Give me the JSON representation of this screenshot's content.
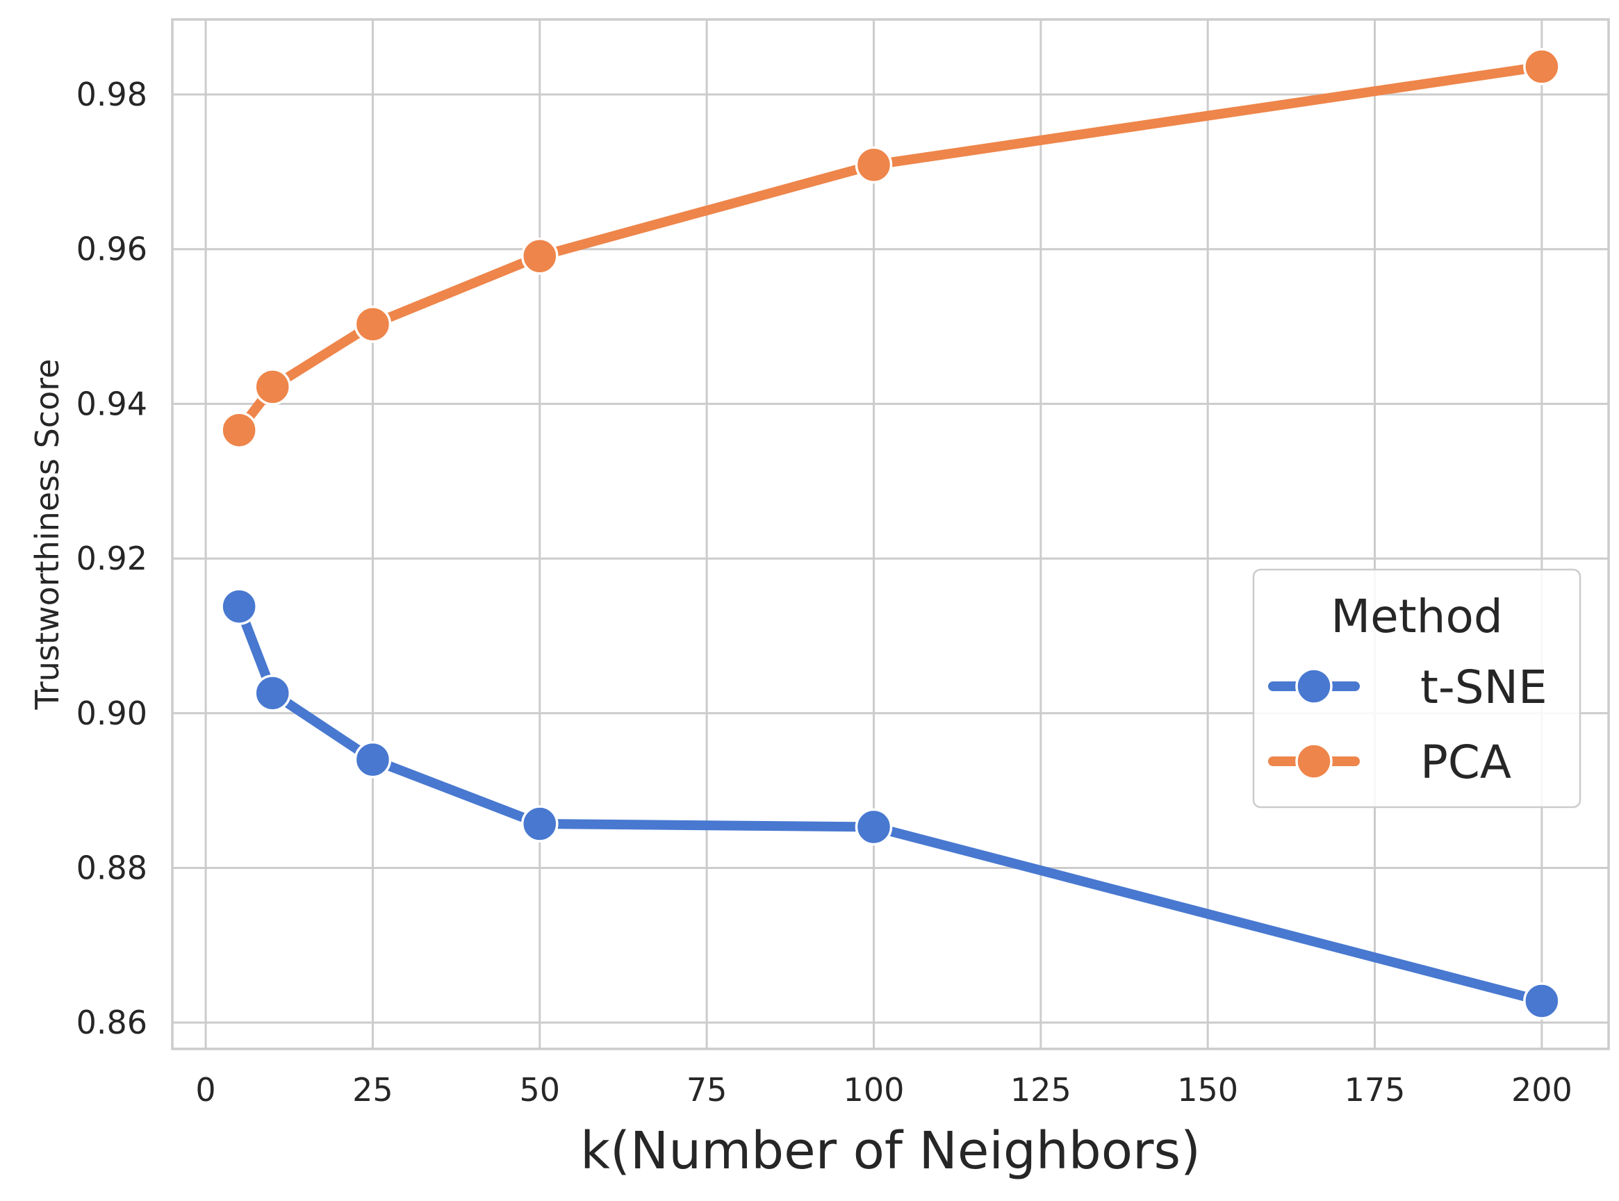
{
  "chart_data": {
    "type": "line",
    "title": "",
    "xlabel": "k(Number of Neighbors)",
    "ylabel": "Trustworthiness Score",
    "x": [
      5,
      10,
      25,
      50,
      100,
      200
    ],
    "series": [
      {
        "name": "t-SNE",
        "color": "#4878d0",
        "values": [
          0.9138,
          0.9026,
          0.894,
          0.8857,
          0.8853,
          0.8628
        ]
      },
      {
        "name": "PCA",
        "color": "#ee854a",
        "values": [
          0.9366,
          0.9422,
          0.9503,
          0.9591,
          0.9709,
          0.9836
        ]
      }
    ],
    "xlim": [
      -5,
      210
    ],
    "ylim": [
      0.8566,
      0.9897
    ],
    "xticks": [
      0,
      25,
      50,
      75,
      100,
      125,
      150,
      175,
      200
    ],
    "xtick_labels": [
      "0",
      "25",
      "50",
      "75",
      "100",
      "125",
      "150",
      "175",
      "200"
    ],
    "yticks": [
      0.86,
      0.88,
      0.9,
      0.92,
      0.94,
      0.96,
      0.98
    ],
    "ytick_labels": [
      "0.86",
      "0.88",
      "0.90",
      "0.92",
      "0.94",
      "0.96",
      "0.98"
    ],
    "grid": true,
    "legend": {
      "title": "Method",
      "position": "center-right"
    }
  }
}
